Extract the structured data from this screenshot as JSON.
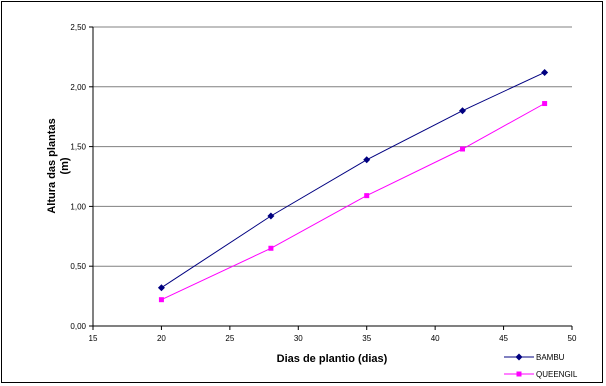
{
  "chart_data": {
    "type": "line",
    "title": "",
    "xlabel": "Dias de plantio (dias)",
    "ylabel_lines": [
      "Altura das plantas",
      "(m)"
    ],
    "xlim": [
      15,
      50
    ],
    "ylim": [
      0,
      2.5
    ],
    "x_ticks": [
      15,
      20,
      25,
      30,
      35,
      40,
      45,
      50
    ],
    "y_ticks": [
      0,
      0.5,
      1.0,
      1.5,
      2.0,
      2.5
    ],
    "y_tick_labels": [
      "0,00",
      "0,50",
      "1,00",
      "1,50",
      "2,00",
      "2,50"
    ],
    "x_tick_labels": [
      "15",
      "20",
      "25",
      "30",
      "35",
      "40",
      "45",
      "50"
    ],
    "grid": "horizontal",
    "legend_position": "bottom-right",
    "series": [
      {
        "name": "BAMBU",
        "color": "#000080",
        "marker": "diamond",
        "x": [
          20,
          28,
          35,
          42,
          48
        ],
        "y": [
          0.32,
          0.92,
          1.39,
          1.8,
          2.12
        ]
      },
      {
        "name": "QUEENGIL",
        "color": "#ff00ff",
        "marker": "square",
        "x": [
          20,
          28,
          35,
          42,
          48
        ],
        "y": [
          0.22,
          0.65,
          1.09,
          1.48,
          1.86
        ]
      }
    ]
  }
}
